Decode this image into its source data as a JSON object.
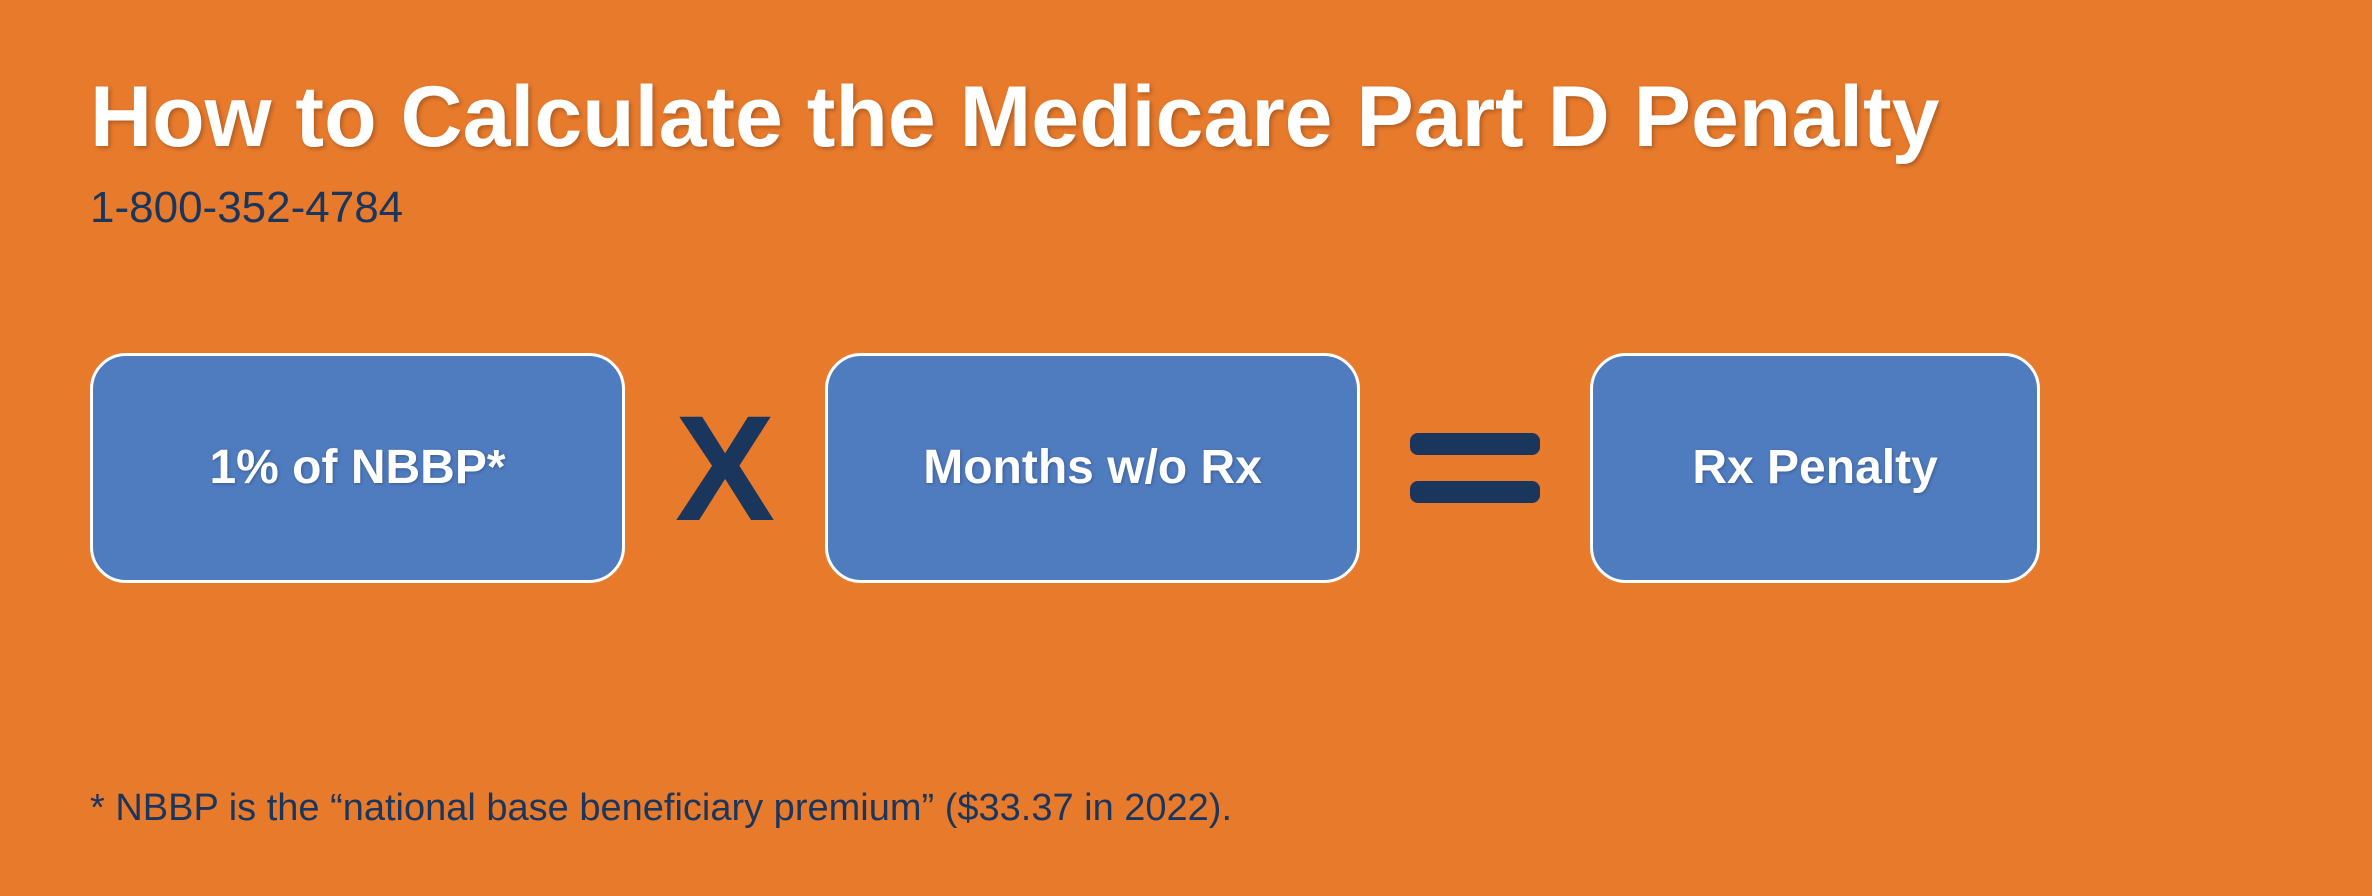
{
  "colors": {
    "background": "#e87a2c",
    "title": "#ffffff",
    "dark_navy": "#1b365d",
    "pill_fill": "#4f7bbf",
    "pill_border": "#ffffff",
    "pill_text": "#ffffff"
  },
  "typography": {
    "title_fontsize": 86,
    "phone_fontsize": 44,
    "pill_fontsize": 48,
    "operator_fontsize": 150,
    "footnote_fontsize": 38
  },
  "layout": {
    "pill_height": 230,
    "pill_radius": 36,
    "pill_widths": {
      "nbbp": 535,
      "months": 535,
      "penalty": 450
    },
    "eq_bar_width": 130
  },
  "header": {
    "title": "How to Calculate the Medicare Part D Penalty",
    "phone": "1-800-352-4784"
  },
  "formula": {
    "term1": "1% of NBBP*",
    "operator1": "X",
    "term2": "Months w/o Rx",
    "operator2": "=",
    "result": "Rx Penalty"
  },
  "footnote": "* NBBP is the “national base beneficiary premium” ($33.37 in 2022)."
}
